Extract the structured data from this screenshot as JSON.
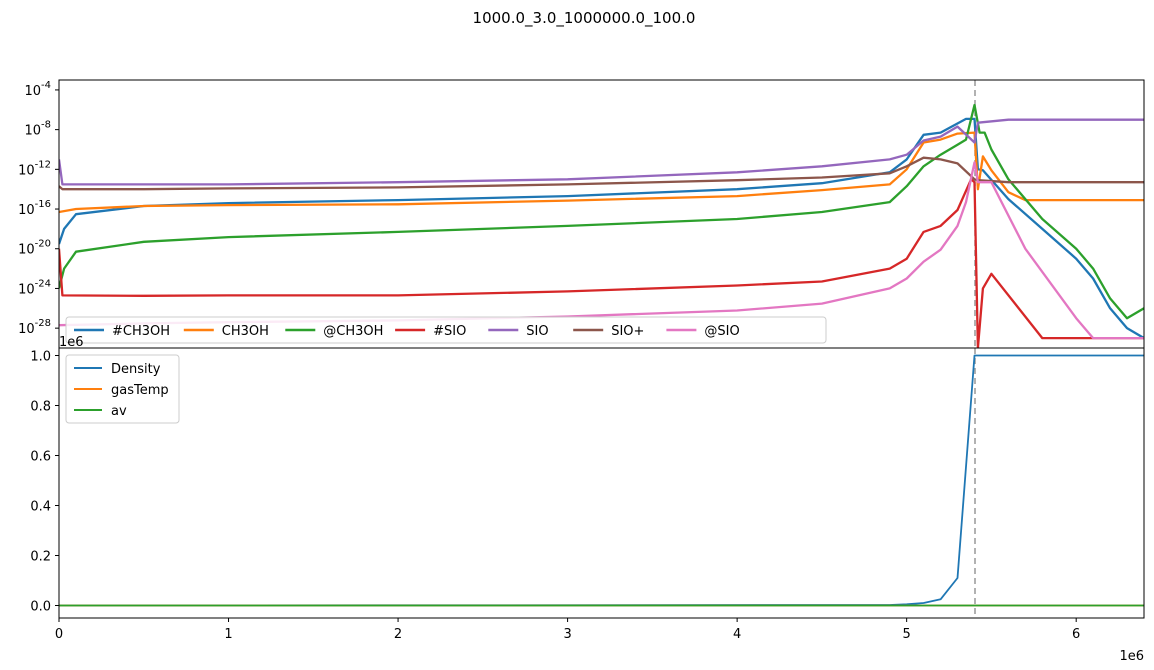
{
  "figure": {
    "title": "1000.0_3.0_1000000.0_100.0"
  },
  "chart_data": [
    {
      "type": "line",
      "panel": "top",
      "yscale": "log",
      "xlim": [
        0,
        6400000
      ],
      "ylim": [
        1e-30,
        0.001
      ],
      "ytick_exponents": [
        "-4",
        "-8",
        "-12",
        "-16",
        "-20",
        "-24",
        "-28"
      ],
      "ytick_base": "10",
      "vline_x": 5400000,
      "legend_position": "lower-left",
      "series": [
        {
          "name": "#CH3OH",
          "color": "#1f77b4",
          "points": [
            [
              0,
              3e-20
            ],
            [
              30000,
              1e-18
            ],
            [
              100000,
              3e-17
            ],
            [
              500000,
              2e-16
            ],
            [
              1000000,
              4e-16
            ],
            [
              2000000,
              8e-16
            ],
            [
              3000000,
              2e-15
            ],
            [
              4000000,
              1e-14
            ],
            [
              4500000,
              4e-14
            ],
            [
              4900000,
              5e-13
            ],
            [
              5000000,
              1e-11
            ],
            [
              5100000,
              3e-09
            ],
            [
              5200000,
              5e-09
            ],
            [
              5350000,
              1.2e-07
            ],
            [
              5400000,
              1.2e-07
            ],
            [
              5420000,
              1e-12
            ],
            [
              5450000,
              8e-13
            ],
            [
              5600000,
              1e-15
            ],
            [
              5800000,
              1e-18
            ],
            [
              6000000,
              1e-21
            ],
            [
              6100000,
              1e-23
            ],
            [
              6200000,
              1e-26
            ],
            [
              6300000,
              1e-28
            ],
            [
              6400000,
              1e-29
            ]
          ]
        },
        {
          "name": "CH3OH",
          "color": "#ff7f0e",
          "points": [
            [
              0,
              5e-17
            ],
            [
              100000,
              1e-16
            ],
            [
              500000,
              2e-16
            ],
            [
              1000000,
              2.5e-16
            ],
            [
              2000000,
              3e-16
            ],
            [
              3000000,
              7e-16
            ],
            [
              4000000,
              2e-15
            ],
            [
              4500000,
              8e-15
            ],
            [
              4900000,
              3e-14
            ],
            [
              5000000,
              1e-12
            ],
            [
              5100000,
              5e-10
            ],
            [
              5200000,
              1e-09
            ],
            [
              5300000,
              4e-09
            ],
            [
              5400000,
              5e-09
            ],
            [
              5420000,
              1e-14
            ],
            [
              5450000,
              2e-11
            ],
            [
              5500000,
              8e-13
            ],
            [
              5600000,
              5e-15
            ],
            [
              5700000,
              8e-16
            ],
            [
              6000000,
              8e-16
            ],
            [
              6400000,
              8e-16
            ]
          ]
        },
        {
          "name": "@CH3OH",
          "color": "#2ca02c",
          "points": [
            [
              0,
              1e-24
            ],
            [
              30000,
              1e-22
            ],
            [
              100000,
              5e-21
            ],
            [
              500000,
              5e-20
            ],
            [
              1000000,
              1.5e-19
            ],
            [
              2000000,
              5e-19
            ],
            [
              3000000,
              2e-18
            ],
            [
              4000000,
              1e-17
            ],
            [
              4500000,
              5e-17
            ],
            [
              4900000,
              5e-16
            ],
            [
              5000000,
              2e-14
            ],
            [
              5100000,
              2e-12
            ],
            [
              5200000,
              3e-11
            ],
            [
              5300000,
              3e-10
            ],
            [
              5350000,
              1e-09
            ],
            [
              5400000,
              3e-06
            ],
            [
              5430000,
              5e-09
            ],
            [
              5460000,
              5e-09
            ],
            [
              5500000,
              1e-10
            ],
            [
              5600000,
              1e-13
            ],
            [
              5800000,
              1e-17
            ],
            [
              6000000,
              1e-20
            ],
            [
              6100000,
              1e-22
            ],
            [
              6200000,
              1e-25
            ],
            [
              6300000,
              1e-27
            ],
            [
              6400000,
              1e-26
            ]
          ]
        },
        {
          "name": "#SIO",
          "color": "#d62728",
          "points": [
            [
              0,
              1e-20
            ],
            [
              20000,
              2e-25
            ],
            [
              500000,
              1.8e-25
            ],
            [
              1000000,
              2e-25
            ],
            [
              2000000,
              2e-25
            ],
            [
              3000000,
              5e-25
            ],
            [
              4000000,
              2e-24
            ],
            [
              4500000,
              5e-24
            ],
            [
              4900000,
              1e-22
            ],
            [
              5000000,
              1e-21
            ],
            [
              5100000,
              5e-19
            ],
            [
              5200000,
              2e-18
            ],
            [
              5300000,
              8e-17
            ],
            [
              5380000,
              1e-13
            ],
            [
              5400000,
              5e-14
            ],
            [
              5420000,
              1e-30
            ],
            [
              5450000,
              1e-24
            ],
            [
              5500000,
              3e-23
            ],
            [
              5800000,
              1e-29
            ],
            [
              6400000,
              1e-29
            ]
          ]
        },
        {
          "name": "SIO",
          "color": "#9467bd",
          "points": [
            [
              0,
              1e-11
            ],
            [
              20000,
              3e-14
            ],
            [
              500000,
              3e-14
            ],
            [
              1000000,
              3e-14
            ],
            [
              2000000,
              5e-14
            ],
            [
              3000000,
              1e-13
            ],
            [
              4000000,
              5e-13
            ],
            [
              4500000,
              2e-12
            ],
            [
              4900000,
              1e-11
            ],
            [
              5000000,
              3e-11
            ],
            [
              5100000,
              8e-10
            ],
            [
              5200000,
              2e-09
            ],
            [
              5300000,
              2e-08
            ],
            [
              5400000,
              5e-10
            ],
            [
              5420000,
              5e-08
            ],
            [
              5600000,
              1e-07
            ],
            [
              6400000,
              1e-07
            ]
          ]
        },
        {
          "name": "SIO+",
          "color": "#8c564b",
          "points": [
            [
              0,
              2e-14
            ],
            [
              20000,
              1e-14
            ],
            [
              500000,
              1e-14
            ],
            [
              1000000,
              1.2e-14
            ],
            [
              2000000,
              1.5e-14
            ],
            [
              3000000,
              3e-14
            ],
            [
              4000000,
              8e-14
            ],
            [
              4500000,
              1.5e-13
            ],
            [
              4900000,
              4e-13
            ],
            [
              5000000,
              2e-12
            ],
            [
              5100000,
              1.5e-11
            ],
            [
              5200000,
              1e-11
            ],
            [
              5300000,
              4e-12
            ],
            [
              5400000,
              1e-13
            ],
            [
              5420000,
              8e-14
            ],
            [
              5600000,
              5e-14
            ],
            [
              6400000,
              5e-14
            ]
          ]
        },
        {
          "name": "@SIO",
          "color": "#e377c2",
          "points": [
            [
              0,
              2e-28
            ],
            [
              500000,
              3e-28
            ],
            [
              1000000,
              4e-28
            ],
            [
              2000000,
              6e-28
            ],
            [
              3000000,
              1.5e-27
            ],
            [
              4000000,
              6e-27
            ],
            [
              4500000,
              3e-26
            ],
            [
              4900000,
              1e-24
            ],
            [
              5000000,
              1e-23
            ],
            [
              5100000,
              5e-22
            ],
            [
              5200000,
              8e-21
            ],
            [
              5300000,
              2e-18
            ],
            [
              5350000,
              5e-16
            ],
            [
              5400000,
              5e-12
            ],
            [
              5420000,
              5e-14
            ],
            [
              5500000,
              5e-14
            ],
            [
              5700000,
              1e-20
            ],
            [
              6000000,
              1e-27
            ],
            [
              6100000,
              1e-29
            ],
            [
              6400000,
              1e-29
            ]
          ]
        }
      ]
    },
    {
      "type": "line",
      "panel": "bottom",
      "yscale": "linear",
      "xlim": [
        0,
        6400000
      ],
      "ylim": [
        -0.05,
        1.03
      ],
      "xticks": [
        "0",
        "1",
        "2",
        "3",
        "4",
        "5",
        "6"
      ],
      "yticks": [
        "0.0",
        "0.2",
        "0.4",
        "0.6",
        "0.8",
        "1.0"
      ],
      "x_offset_label": "1e6",
      "y_offset_label": "1e6",
      "vline_x": 5400000,
      "legend_position": "upper-left",
      "series": [
        {
          "name": "Density",
          "color": "#1f77b4",
          "points": [
            [
              0,
              0
            ],
            [
              4900000,
              0.002
            ],
            [
              5000000,
              0.005
            ],
            [
              5100000,
              0.01
            ],
            [
              5200000,
              0.025
            ],
            [
              5300000,
              0.11
            ],
            [
              5400000,
              1.0
            ],
            [
              6400000,
              1.0
            ]
          ]
        },
        {
          "name": "gasTemp",
          "color": "#ff7f0e",
          "points": [
            [
              0,
              0
            ],
            [
              6400000,
              0
            ]
          ]
        },
        {
          "name": "av",
          "color": "#2ca02c",
          "points": [
            [
              0,
              0
            ],
            [
              6400000,
              0
            ]
          ]
        }
      ]
    }
  ]
}
